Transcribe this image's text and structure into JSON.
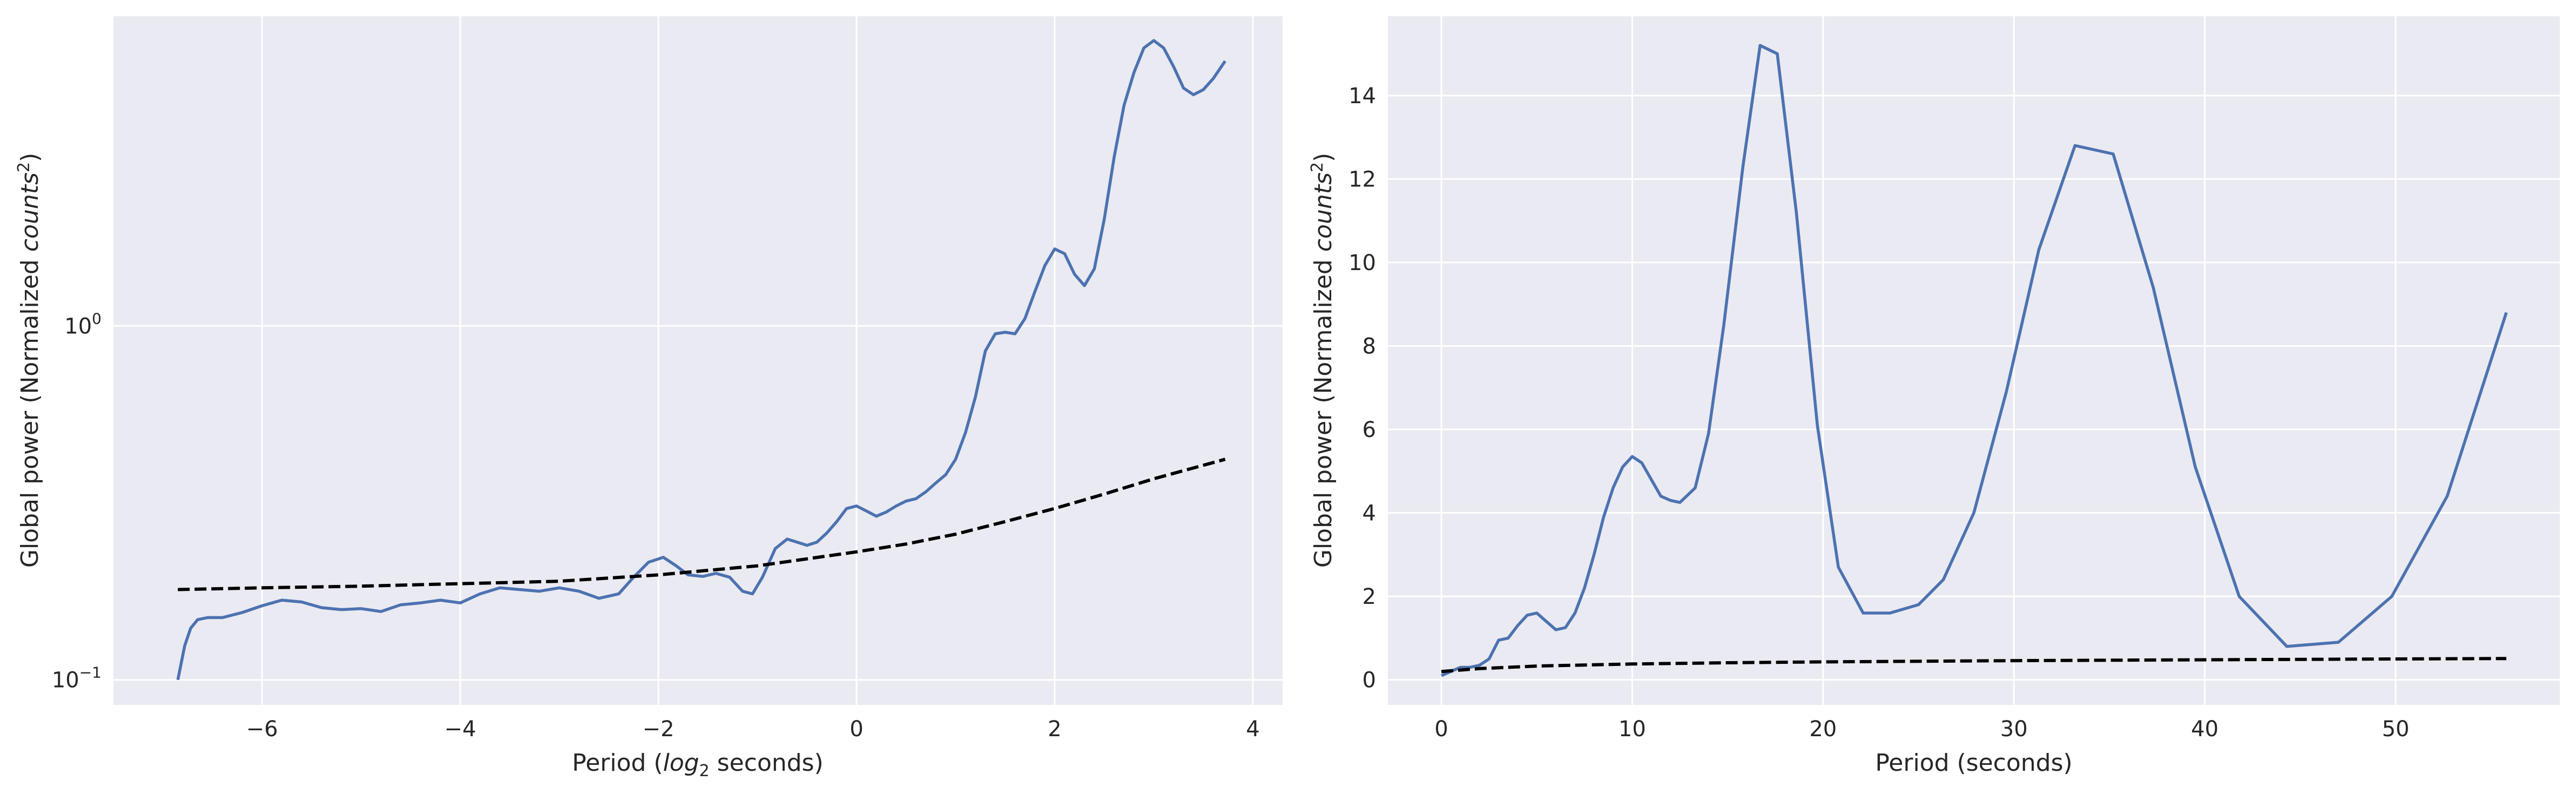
{
  "colors": {
    "background": "#ffffff",
    "axes_face": "#eaeaf2",
    "grid": "#ffffff",
    "series_line": "#4c72b0",
    "reference_line": "#000000",
    "text": "#262626"
  },
  "chart_data": [
    {
      "type": "line",
      "title": "",
      "xlabel": "Period (log₂ seconds)",
      "xlabel_parts": {
        "before": "Period (",
        "log": "log",
        "sub": "2",
        "after": " seconds)"
      },
      "ylabel": "Global power (Normalized counts²)",
      "ylabel_parts": {
        "before": "Global power (Normalized ",
        "word": "counts",
        "sup": "2",
        "after": ")"
      },
      "yscale": "log",
      "xlim": [
        -7.5,
        4.3
      ],
      "ylim": [
        0.085,
        7.5
      ],
      "xticks": [
        -6,
        -4,
        -2,
        0,
        2,
        4
      ],
      "xtick_labels": [
        "−6",
        "−4",
        "−2",
        "0",
        "2",
        "4"
      ],
      "yticks": [
        {
          "value": 0.1,
          "base": "10",
          "exp": "−1"
        },
        {
          "value": 1,
          "base": "10",
          "exp": "0"
        }
      ],
      "grid": true,
      "series": [
        {
          "style": "solid",
          "x": [
            -6.85,
            -6.78,
            -6.72,
            -6.65,
            -6.55,
            -6.4,
            -6.2,
            -6.0,
            -5.8,
            -5.6,
            -5.4,
            -5.2,
            -5.0,
            -4.8,
            -4.6,
            -4.4,
            -4.2,
            -4.0,
            -3.8,
            -3.6,
            -3.4,
            -3.2,
            -3.0,
            -2.8,
            -2.6,
            -2.4,
            -2.25,
            -2.1,
            -1.95,
            -1.82,
            -1.7,
            -1.55,
            -1.42,
            -1.28,
            -1.15,
            -1.05,
            -0.95,
            -0.82,
            -0.7,
            -0.6,
            -0.5,
            -0.4,
            -0.3,
            -0.2,
            -0.1,
            0.0,
            0.1,
            0.2,
            0.3,
            0.4,
            0.5,
            0.6,
            0.7,
            0.8,
            0.9,
            1.0,
            1.1,
            1.2,
            1.3,
            1.4,
            1.5,
            1.6,
            1.7,
            1.8,
            1.9,
            2.0,
            2.1,
            2.2,
            2.3,
            2.4,
            2.5,
            2.6,
            2.7,
            2.8,
            2.9,
            3.0,
            3.1,
            3.2,
            3.3,
            3.4,
            3.5,
            3.6,
            3.72
          ],
          "y": [
            0.1,
            0.125,
            0.14,
            0.148,
            0.15,
            0.15,
            0.155,
            0.162,
            0.168,
            0.166,
            0.16,
            0.158,
            0.159,
            0.156,
            0.163,
            0.165,
            0.168,
            0.165,
            0.175,
            0.182,
            0.18,
            0.178,
            0.182,
            0.178,
            0.17,
            0.175,
            0.195,
            0.215,
            0.222,
            0.21,
            0.198,
            0.196,
            0.2,
            0.195,
            0.178,
            0.175,
            0.195,
            0.235,
            0.25,
            0.245,
            0.24,
            0.245,
            0.26,
            0.28,
            0.305,
            0.31,
            0.3,
            0.29,
            0.298,
            0.31,
            0.32,
            0.325,
            0.34,
            0.36,
            0.38,
            0.42,
            0.5,
            0.63,
            0.85,
            0.95,
            0.96,
            0.95,
            1.05,
            1.25,
            1.48,
            1.65,
            1.6,
            1.4,
            1.3,
            1.45,
            2.0,
            3.0,
            4.2,
            5.2,
            6.1,
            6.4,
            6.1,
            5.4,
            4.7,
            4.5,
            4.65,
            5.0,
            5.6
          ]
        },
        {
          "style": "dashed",
          "x": [
            -6.85,
            -6.0,
            -5.0,
            -4.0,
            -3.0,
            -2.0,
            -1.0,
            0.0,
            0.5,
            1.0,
            1.5,
            2.0,
            2.5,
            3.0,
            3.3,
            3.72
          ],
          "y": [
            0.18,
            0.182,
            0.184,
            0.187,
            0.19,
            0.198,
            0.21,
            0.23,
            0.242,
            0.258,
            0.28,
            0.305,
            0.335,
            0.37,
            0.39,
            0.42
          ]
        }
      ]
    },
    {
      "type": "line",
      "title": "",
      "xlabel": "Period (seconds)",
      "ylabel": "Global power (Normalized counts²)",
      "ylabel_parts": {
        "before": "Global power (Normalized ",
        "word": "counts",
        "sup": "2",
        "after": ")"
      },
      "yscale": "linear",
      "xlim": [
        -2.8,
        58.6
      ],
      "ylim": [
        -0.6,
        15.9
      ],
      "xticks": [
        0,
        10,
        20,
        30,
        40,
        50
      ],
      "xtick_labels": [
        "0",
        "10",
        "20",
        "30",
        "40",
        "50"
      ],
      "yticks": [
        0,
        2,
        4,
        6,
        8,
        10,
        12,
        14
      ],
      "ytick_labels": [
        "0",
        "2",
        "4",
        "6",
        "8",
        "10",
        "12",
        "14"
      ],
      "grid": true,
      "series": [
        {
          "style": "solid",
          "x": [
            0.0,
            0.5,
            1.0,
            1.5,
            2.0,
            2.5,
            3.0,
            3.5,
            4.0,
            4.5,
            5.0,
            5.5,
            6.0,
            6.5,
            7.0,
            7.5,
            8.0,
            8.5,
            9.0,
            9.5,
            10.0,
            10.5,
            11.0,
            11.5,
            12.0,
            12.5,
            13.3,
            14.0,
            14.8,
            15.8,
            16.7,
            17.6,
            18.6,
            19.7,
            20.8,
            22.1,
            23.5,
            25.0,
            26.3,
            27.9,
            29.6,
            31.3,
            33.2,
            35.2,
            37.3,
            39.5,
            41.8,
            44.3,
            47.0,
            49.8,
            52.7,
            55.8
          ],
          "y": [
            0.1,
            0.2,
            0.3,
            0.3,
            0.35,
            0.5,
            0.95,
            1.0,
            1.3,
            1.55,
            1.6,
            1.4,
            1.2,
            1.25,
            1.6,
            2.2,
            3.0,
            3.9,
            4.6,
            5.1,
            5.35,
            5.2,
            4.8,
            4.4,
            4.3,
            4.25,
            4.6,
            5.9,
            8.5,
            12.3,
            15.2,
            15.0,
            11.2,
            6.1,
            2.7,
            1.6,
            1.6,
            1.8,
            2.4,
            4.0,
            6.9,
            10.3,
            12.8,
            12.6,
            9.4,
            5.1,
            2.0,
            0.8,
            0.9,
            2.0,
            4.4,
            8.8
          ]
        },
        {
          "style": "dashed",
          "x": [
            0,
            2,
            5,
            10,
            15,
            20,
            30,
            40,
            50,
            55.8
          ],
          "y": [
            0.2,
            0.27,
            0.33,
            0.38,
            0.41,
            0.43,
            0.46,
            0.48,
            0.5,
            0.51
          ]
        }
      ]
    }
  ]
}
